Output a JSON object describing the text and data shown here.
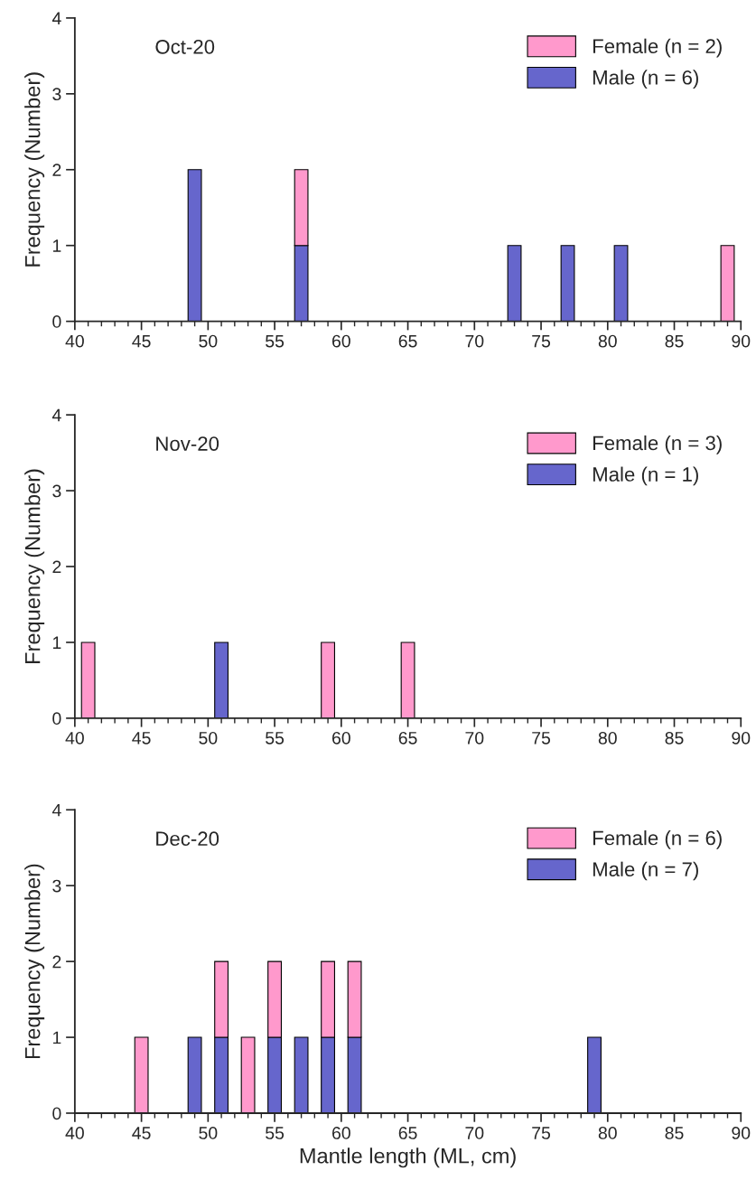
{
  "chart_data": [
    {
      "type": "bar",
      "title": "Oct-20",
      "ylabel": "Frequency (Number)",
      "stacked": true,
      "legend": "top right",
      "grid": false,
      "x": [
        49,
        57,
        73,
        77,
        81,
        89
      ],
      "series": [
        {
          "name": "Male (n = 6)",
          "color": "#6666cc",
          "values": [
            2,
            1,
            1,
            1,
            1,
            null
          ]
        },
        {
          "name": "Female (n = 2)",
          "color": "#ff99cc",
          "values": [
            null,
            1,
            null,
            null,
            null,
            1
          ]
        }
      ],
      "xlim": [
        40,
        90
      ],
      "xticks": [
        40,
        45,
        50,
        55,
        60,
        65,
        70,
        75,
        80,
        85,
        90
      ],
      "ylim": [
        0,
        4
      ],
      "yticks": [
        0,
        1,
        2,
        3,
        4
      ]
    },
    {
      "type": "bar",
      "title": "Nov-20",
      "ylabel": "Frequency (Number)",
      "stacked": true,
      "legend": "top right",
      "grid": false,
      "x": [
        41,
        51,
        59,
        65
      ],
      "series": [
        {
          "name": "Male (n = 1)",
          "color": "#6666cc",
          "values": [
            null,
            1,
            null,
            null
          ]
        },
        {
          "name": "Female (n = 3)",
          "color": "#ff99cc",
          "values": [
            1,
            null,
            1,
            1
          ]
        }
      ],
      "xlim": [
        40,
        90
      ],
      "xticks": [
        40,
        45,
        50,
        55,
        60,
        65,
        70,
        75,
        80,
        85,
        90
      ],
      "ylim": [
        0,
        4
      ],
      "yticks": [
        0,
        1,
        2,
        3,
        4
      ]
    },
    {
      "type": "bar",
      "title": "Dec-20",
      "xlabel": "Mantle length (ML, cm)",
      "ylabel": "Frequency (Number)",
      "stacked": true,
      "legend": "top right",
      "grid": false,
      "x": [
        45,
        49,
        51,
        53,
        55,
        57,
        59,
        61,
        79
      ],
      "series": [
        {
          "name": "Male (n = 7)",
          "color": "#6666cc",
          "values": [
            null,
            1,
            1,
            null,
            1,
            1,
            1,
            1,
            1
          ]
        },
        {
          "name": "Female (n = 6)",
          "color": "#ff99cc",
          "values": [
            1,
            null,
            1,
            1,
            1,
            null,
            1,
            1,
            null
          ]
        }
      ],
      "xlim": [
        40,
        90
      ],
      "xticks": [
        40,
        45,
        50,
        55,
        60,
        65,
        70,
        75,
        80,
        85,
        90
      ],
      "ylim": [
        0,
        4
      ],
      "yticks": [
        0,
        1,
        2,
        3,
        4
      ]
    }
  ]
}
